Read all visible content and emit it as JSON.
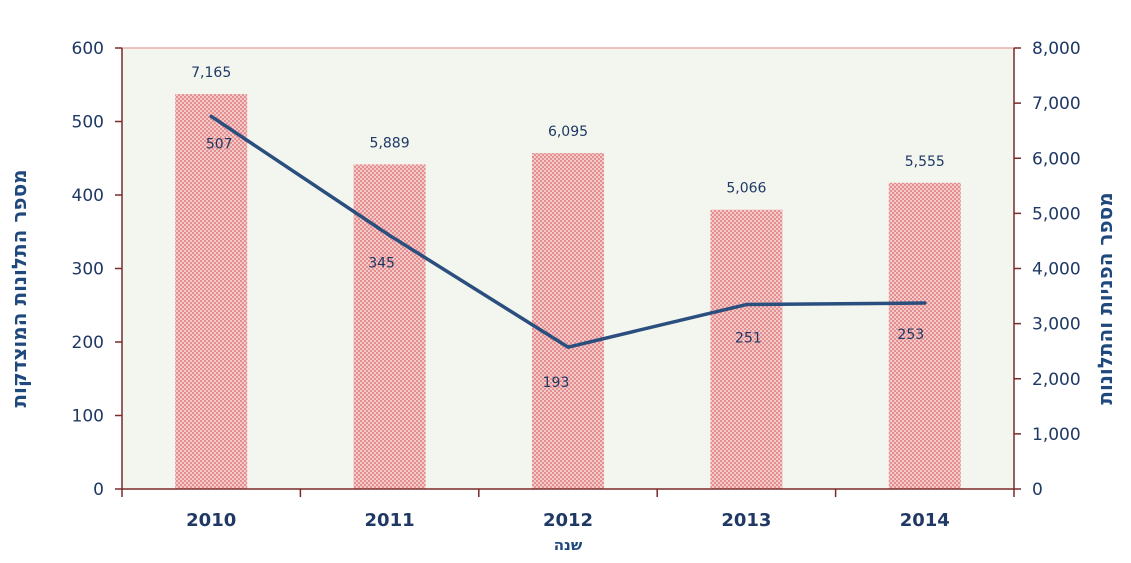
{
  "chart_data": {
    "type": "bar+line",
    "categories": [
      "2010",
      "2011",
      "2012",
      "2013",
      "2014"
    ],
    "xlabel": "שנה",
    "y_left_label": "מספר התלונות המוצדקות",
    "y_right_label": "מספר הפניות והתלונות",
    "y_left_ticks": [
      "0",
      "100",
      "200",
      "300",
      "400",
      "500",
      "600"
    ],
    "y_right_ticks": [
      "0",
      "1,000",
      "2,000",
      "3,000",
      "4,000",
      "5,000",
      "6,000",
      "7,000",
      "8,000"
    ],
    "y_left_lim": [
      0,
      600
    ],
    "y_right_lim": [
      0,
      8000
    ],
    "bar_series": {
      "axis": "right",
      "values": [
        7165,
        5889,
        6095,
        5066,
        5555
      ],
      "labels": [
        "7,165",
        "5,889",
        "6,095",
        "5,066",
        "5,555"
      ],
      "color": "#e8a0a0"
    },
    "line_series": {
      "axis": "left",
      "values": [
        507,
        345,
        193,
        251,
        253
      ],
      "labels": [
        "507",
        "345",
        "193",
        "251",
        "253"
      ],
      "color": "#2a4e7e"
    },
    "plot_background": "#f3f6ee",
    "axis_color": "#7a2a2a",
    "text_color": "#1f3864"
  }
}
